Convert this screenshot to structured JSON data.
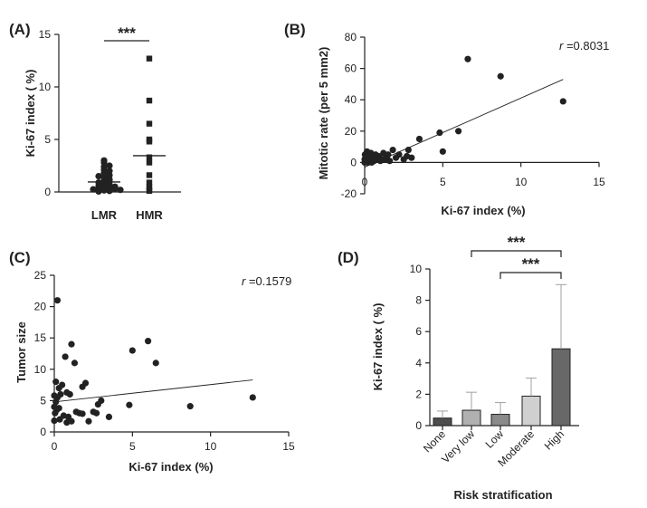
{
  "colors": {
    "ink": "#222222",
    "bar_dark": "#4d4d4d",
    "bar_light": "#b0b0b0",
    "bar_lighter": "#d0d0d0",
    "error": "#a0a0a0"
  },
  "chart_data": [
    {
      "panel": "(A)",
      "type": "scatter",
      "categories": [
        "LMR",
        "HMR"
      ],
      "ylabel": "Ki-67 index ( %)",
      "ylim": [
        0,
        15
      ],
      "yticks": [
        "0",
        "5",
        "10",
        "15"
      ],
      "significance": "***",
      "means": [
        0.95,
        3.45
      ],
      "series": [
        {
          "category": "LMR",
          "marker": "circle",
          "values": [
            3.0,
            2.8,
            2.5,
            2.4,
            2.1,
            2.0,
            1.8,
            1.6,
            1.5,
            1.4,
            1.2,
            1.1,
            1.0,
            0.9,
            0.8,
            0.7,
            0.6,
            0.5,
            0.45,
            0.4,
            0.35,
            0.3,
            0.25,
            0.2,
            0.15,
            0.1,
            0.05
          ]
        },
        {
          "category": "HMR",
          "marker": "square",
          "values": [
            12.7,
            8.7,
            6.5,
            5.0,
            4.8,
            3.3,
            2.8,
            1.6,
            0.9,
            0.5,
            0.2,
            0.1
          ]
        }
      ]
    },
    {
      "panel": "(B)",
      "type": "scatter",
      "xlabel": "Ki-67 index (%)",
      "ylabel": "Mitotic rate (per 5 mm2)",
      "xlim": [
        0,
        15
      ],
      "ylim": [
        -20,
        80
      ],
      "xticks": [
        "0",
        "5",
        "10",
        "15"
      ],
      "yticks": [
        "-20",
        "0",
        "20",
        "40",
        "60",
        "80"
      ],
      "r_prefix": "r",
      "r_value": " =0.8031",
      "trend": {
        "x0": 0,
        "y0": -3,
        "x1": 12.7,
        "y1": 53
      },
      "points": [
        [
          12.7,
          39
        ],
        [
          8.7,
          55
        ],
        [
          6.6,
          66
        ],
        [
          6.0,
          20
        ],
        [
          5.0,
          7
        ],
        [
          4.8,
          19
        ],
        [
          3.5,
          15
        ],
        [
          3.0,
          3
        ],
        [
          2.8,
          8
        ],
        [
          2.7,
          4
        ],
        [
          2.5,
          2
        ],
        [
          2.2,
          5
        ],
        [
          2.0,
          3
        ],
        [
          1.8,
          8
        ],
        [
          1.6,
          1
        ],
        [
          1.5,
          5
        ],
        [
          1.4,
          3
        ],
        [
          1.3,
          2
        ],
        [
          1.2,
          6
        ],
        [
          1.1,
          2
        ],
        [
          1.0,
          1
        ],
        [
          0.9,
          4
        ],
        [
          0.8,
          2
        ],
        [
          0.7,
          5
        ],
        [
          0.6,
          1
        ],
        [
          0.5,
          3
        ],
        [
          0.45,
          0
        ],
        [
          0.4,
          6
        ],
        [
          0.35,
          1
        ],
        [
          0.3,
          4
        ],
        [
          0.25,
          2
        ],
        [
          0.2,
          0
        ],
        [
          0.15,
          7
        ],
        [
          0.1,
          3
        ],
        [
          0.05,
          1
        ],
        [
          0.02,
          5
        ],
        [
          0.0,
          2
        ],
        [
          0.0,
          0
        ]
      ]
    },
    {
      "panel": "(C)",
      "type": "scatter",
      "xlabel": "Ki-67 index (%)",
      "ylabel": "Tumor size",
      "xlim": [
        0,
        15
      ],
      "ylim": [
        0,
        25
      ],
      "xticks": [
        "0",
        "5",
        "10",
        "15"
      ],
      "yticks": [
        "0",
        "5",
        "10",
        "15",
        "20",
        "25"
      ],
      "r_prefix": "r",
      "r_value": " =0.1579",
      "trend": {
        "x0": 0,
        "y0": 4.8,
        "x1": 12.7,
        "y1": 8.3
      },
      "points": [
        [
          0.2,
          21
        ],
        [
          6.0,
          14.5
        ],
        [
          5.0,
          13
        ],
        [
          1.1,
          14
        ],
        [
          0.7,
          12
        ],
        [
          1.3,
          11
        ],
        [
          6.5,
          11
        ],
        [
          0.1,
          8
        ],
        [
          0.5,
          7.5
        ],
        [
          0.3,
          7
        ],
        [
          1.8,
          7.2
        ],
        [
          2.0,
          7.8
        ],
        [
          0.8,
          6.3
        ],
        [
          0.4,
          6
        ],
        [
          1.0,
          6
        ],
        [
          0.0,
          5.8
        ],
        [
          0.2,
          5.5
        ],
        [
          12.7,
          5.5
        ],
        [
          0.1,
          4.8
        ],
        [
          3.0,
          5
        ],
        [
          2.8,
          4.4
        ],
        [
          4.8,
          4.3
        ],
        [
          8.7,
          4.1
        ],
        [
          0.0,
          4
        ],
        [
          0.3,
          3.8
        ],
        [
          0.15,
          3.5
        ],
        [
          1.4,
          3.2
        ],
        [
          1.6,
          3
        ],
        [
          2.5,
          3.2
        ],
        [
          0.05,
          3
        ],
        [
          2.7,
          3
        ],
        [
          1.8,
          2.9
        ],
        [
          0.6,
          2.6
        ],
        [
          3.5,
          2.4
        ],
        [
          0.9,
          2.4
        ],
        [
          0.35,
          2
        ],
        [
          0.0,
          1.8
        ],
        [
          2.2,
          1.7
        ],
        [
          0.8,
          1.5
        ],
        [
          1.1,
          1.7
        ]
      ]
    },
    {
      "panel": "(D)",
      "type": "bar",
      "xlabel": "Risk stratification",
      "ylabel": "Ki-67 index ( %)",
      "ylim": [
        0,
        10
      ],
      "yticks": [
        "0",
        "2",
        "4",
        "6",
        "8",
        "10"
      ],
      "categories": [
        "None",
        "Very low",
        "Low",
        "Moderate",
        "High"
      ],
      "values": [
        0.48,
        0.98,
        0.72,
        1.88,
        4.9
      ],
      "errors": [
        0.45,
        1.15,
        0.75,
        1.15,
        4.1
      ],
      "fills": [
        "#4d4d4d",
        "#b0b0b0",
        "#8a8a8a",
        "#d0d0d0",
        "#686868"
      ],
      "significance": [
        {
          "from": "Very low",
          "to": "High",
          "label": "***"
        },
        {
          "from": "Low",
          "to": "High",
          "label": "***"
        }
      ]
    }
  ]
}
